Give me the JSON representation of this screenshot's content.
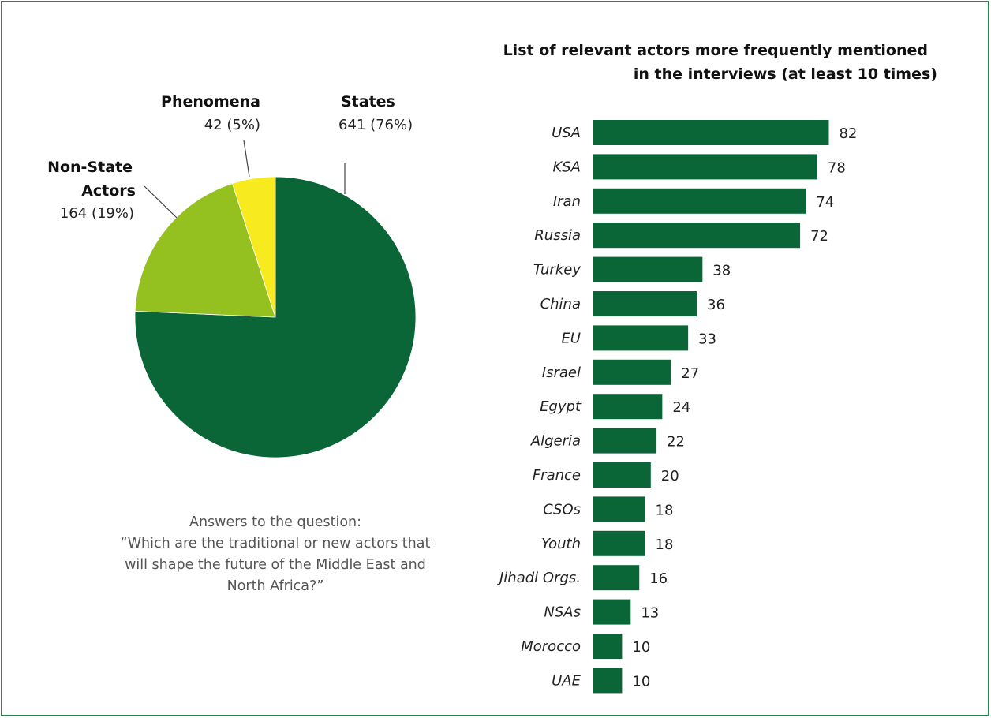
{
  "chart_data": [
    {
      "type": "pie",
      "slices": [
        {
          "name": "States",
          "value": 641,
          "label": "641 (76%)"
        },
        {
          "name": "Non-State Actors",
          "value": 164,
          "label": "164 (19%)"
        },
        {
          "name": "Phenomena",
          "value": 42,
          "label": "42 (5%)"
        }
      ],
      "label_lines": {
        "states": "States",
        "non_state_1": "Non-State",
        "non_state_2": "Actors",
        "phenomena": "Phenomena"
      },
      "caption": [
        "Answers to the question:",
        "“Which are the traditional or new actors that",
        "will shape the future of the Middle East and",
        "North Africa?”"
      ]
    },
    {
      "type": "bar",
      "orientation": "horizontal",
      "title": [
        "List of relevant actors more frequently mentioned",
        "in the interviews (at least 10 times)"
      ],
      "categories": [
        "USA",
        "KSA",
        "Iran",
        "Russia",
        "Turkey",
        "China",
        "EU",
        "Israel",
        "Egypt",
        "Algeria",
        "France",
        "CSOs",
        "Youth",
        "Jihadi Orgs.",
        "NSAs",
        "Morocco",
        "UAE"
      ],
      "values": [
        82,
        78,
        74,
        72,
        38,
        36,
        33,
        27,
        24,
        22,
        20,
        18,
        18,
        16,
        13,
        10,
        10
      ]
    }
  ],
  "colors": {
    "states": "#0a6636",
    "non_state_actors": "#95c120",
    "phenomena": "#f7ea1f",
    "bar": "#0a6636",
    "frame": "#1d8a4a"
  }
}
